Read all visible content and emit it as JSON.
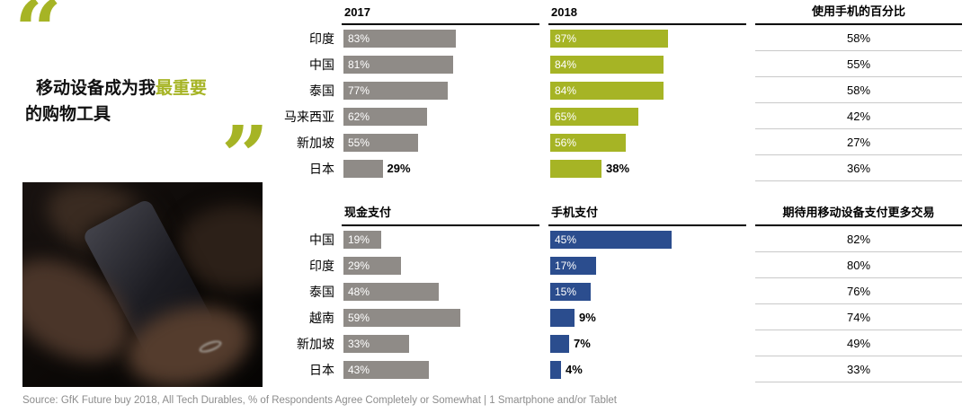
{
  "quote": {
    "open": "“",
    "close": "”",
    "line1_black": "移动设备成为我",
    "line1_highlight": "最重要",
    "line2": "的购物工具"
  },
  "colors": {
    "olive": "#a6b425",
    "gray": "#8f8b87",
    "blue": "#2b4d8e"
  },
  "chart_data": [
    {
      "type": "bar",
      "title": "使用手机的百分比",
      "categories": [
        "印度",
        "中国",
        "泰国",
        "马来西亚",
        "新加坡",
        "日本"
      ],
      "series": [
        {
          "name": "2017",
          "values": [
            83,
            81,
            77,
            62,
            55,
            29
          ]
        },
        {
          "name": "2018",
          "values": [
            87,
            84,
            84,
            65,
            56,
            38
          ]
        },
        {
          "name": "使用手机的百分比",
          "values": [
            58,
            55,
            58,
            42,
            27,
            36
          ]
        }
      ],
      "unit": "%",
      "xlim": [
        0,
        100
      ],
      "legend_position": "column-headers"
    },
    {
      "type": "bar",
      "title": "现金支付 / 手机支付",
      "categories": [
        "中国",
        "印度",
        "泰国",
        "越南",
        "新加坡",
        "日本"
      ],
      "series": [
        {
          "name": "现金支付",
          "values": [
            19,
            29,
            48,
            59,
            33,
            43
          ]
        },
        {
          "name": "手机支付",
          "values": [
            45,
            17,
            15,
            9,
            7,
            4
          ]
        },
        {
          "name": "期待用移动设备支付更多交易",
          "values": [
            82,
            80,
            76,
            74,
            49,
            33
          ]
        }
      ],
      "unit": "%",
      "xlim": [
        0,
        100
      ],
      "legend_position": "column-headers"
    }
  ],
  "source": "Source: GfK Future buy 2018, All Tech Durables, % of Respondents Agree Completely or Somewhat | 1 Smartphone and/or Tablet"
}
